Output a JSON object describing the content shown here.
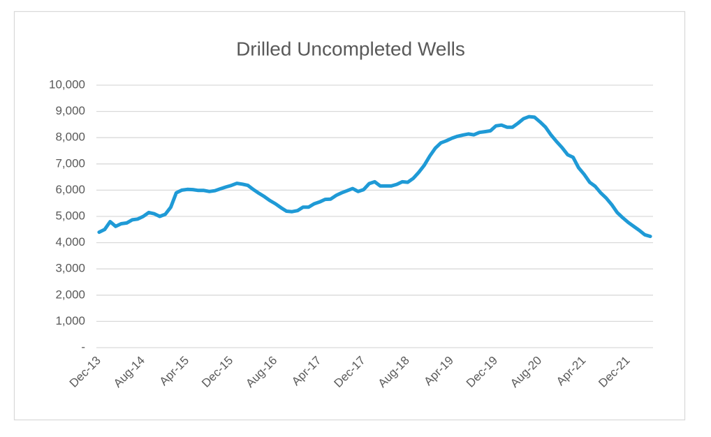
{
  "chart_data": {
    "type": "line",
    "title": "Drilled Uncompleted Wells",
    "categories": [
      "Dec-13",
      null,
      null,
      null,
      null,
      null,
      null,
      null,
      "Aug-14",
      null,
      null,
      null,
      null,
      null,
      null,
      null,
      "Apr-15",
      null,
      null,
      null,
      null,
      null,
      null,
      null,
      "Dec-15",
      null,
      null,
      null,
      null,
      null,
      null,
      null,
      "Aug-16",
      null,
      null,
      null,
      null,
      null,
      null,
      null,
      "Apr-17",
      null,
      null,
      null,
      null,
      null,
      null,
      null,
      "Dec-17",
      null,
      null,
      null,
      null,
      null,
      null,
      null,
      "Aug-18",
      null,
      null,
      null,
      null,
      null,
      null,
      null,
      "Apr-19",
      null,
      null,
      null,
      null,
      null,
      null,
      null,
      "Dec-19",
      null,
      null,
      null,
      null,
      null,
      null,
      null,
      "Aug-20",
      null,
      null,
      null,
      null,
      null,
      null,
      null,
      "Apr-21",
      null,
      null,
      null,
      null,
      null,
      null,
      null,
      "Dec-21",
      null,
      null,
      null,
      null
    ],
    "values": [
      4400,
      4500,
      4800,
      4620,
      4720,
      4750,
      4870,
      4900,
      5000,
      5150,
      5100,
      5000,
      5080,
      5350,
      5900,
      6000,
      6030,
      6020,
      5990,
      5990,
      5950,
      5980,
      6050,
      6120,
      6180,
      6260,
      6230,
      6180,
      6020,
      5880,
      5750,
      5600,
      5480,
      5330,
      5200,
      5180,
      5220,
      5350,
      5350,
      5480,
      5550,
      5650,
      5660,
      5800,
      5900,
      5980,
      6060,
      5950,
      6020,
      6250,
      6320,
      6160,
      6160,
      6160,
      6220,
      6320,
      6300,
      6450,
      6680,
      6950,
      7300,
      7600,
      7800,
      7880,
      7980,
      8050,
      8100,
      8140,
      8110,
      8200,
      8230,
      8260,
      8450,
      8480,
      8400,
      8400,
      8550,
      8720,
      8800,
      8780,
      8600,
      8400,
      8100,
      7850,
      7620,
      7350,
      7250,
      6850,
      6600,
      6300,
      6150,
      5900,
      5700,
      5450,
      5150,
      4950,
      4770,
      4620,
      4470,
      4300,
      4240
    ],
    "color": "#1f9ad6",
    "ylim": [
      0,
      10000
    ],
    "yticks": [
      {
        "value": 0,
        "label": "-"
      },
      {
        "value": 1000,
        "label": "1,000"
      },
      {
        "value": 2000,
        "label": "2,000"
      },
      {
        "value": 3000,
        "label": "3,000"
      },
      {
        "value": 4000,
        "label": "4,000"
      },
      {
        "value": 5000,
        "label": "5,000"
      },
      {
        "value": 6000,
        "label": "6,000"
      },
      {
        "value": 7000,
        "label": "7,000"
      },
      {
        "value": 8000,
        "label": "8,000"
      },
      {
        "value": 9000,
        "label": "9,000"
      },
      {
        "value": 10000,
        "label": "10,000"
      }
    ],
    "grid": true
  }
}
